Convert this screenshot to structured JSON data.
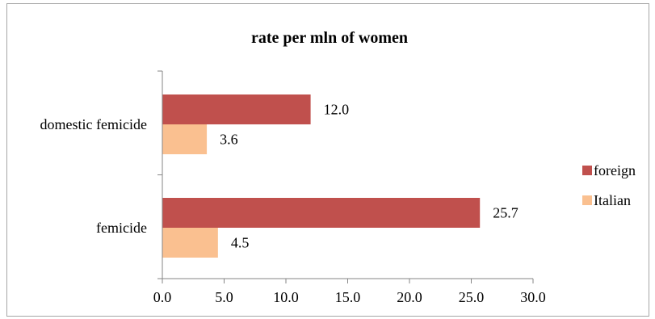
{
  "chart_data": {
    "type": "bar",
    "orientation": "horizontal",
    "title": "rate per mln of women",
    "xlabel": "",
    "ylabel": "",
    "categories": [
      "domestic femicide",
      "femicide"
    ],
    "series": [
      {
        "name": "foreign",
        "values": [
          12.0,
          25.7
        ],
        "color": "#c0504d"
      },
      {
        "name": "Italian",
        "values": [
          3.6,
          4.5
        ],
        "color": "#fac090"
      }
    ],
    "xlim": [
      0,
      30
    ],
    "xticks": [
      "0.0",
      "5.0",
      "10.0",
      "15.0",
      "20.0",
      "25.0",
      "30.0"
    ],
    "data_labels": [
      [
        "12.0",
        "25.7"
      ],
      [
        "3.6",
        "4.5"
      ]
    ],
    "legend_position": "right",
    "grid": false
  }
}
